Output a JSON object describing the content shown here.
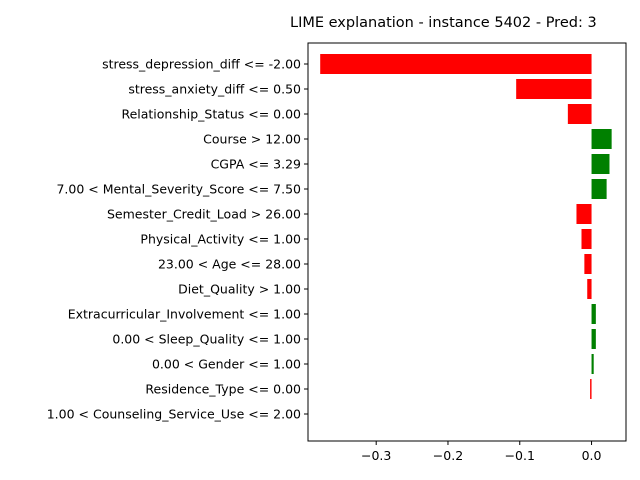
{
  "chart_data": {
    "type": "bar",
    "orientation": "horizontal",
    "title": "LIME explanation - instance 5402 - Pred: 3",
    "xlabel": "",
    "ylabel": "",
    "xlim": [
      -0.395,
      0.048
    ],
    "x_ticks": [
      -0.3,
      -0.2,
      -0.1,
      0.0
    ],
    "x_tick_labels": [
      "−0.3",
      "−0.2",
      "−0.1",
      "0.0"
    ],
    "grid": false,
    "legend": "none",
    "positive_color": "#008000",
    "negative_color": "#ff0000",
    "categories": [
      "stress_depression_diff <= -2.00",
      "stress_anxiety_diff <= 0.50",
      "Relationship_Status <= 0.00",
      "Course > 12.00",
      "CGPA <= 3.29",
      "7.00 < Mental_Severity_Score <= 7.50",
      "Semester_Credit_Load > 26.00",
      "Physical_Activity <= 1.00",
      "23.00 < Age <= 28.00",
      "Diet_Quality > 1.00",
      "Extracurricular_Involvement <= 1.00",
      "0.00 < Sleep_Quality <= 1.00",
      "0.00 < Gender <= 1.00",
      "Residence_Type <= 0.00",
      "1.00 < Counseling_Service_Use <= 2.00"
    ],
    "values": [
      -0.378,
      -0.105,
      -0.033,
      0.028,
      0.025,
      0.021,
      -0.021,
      -0.014,
      -0.01,
      -0.006,
      0.006,
      0.006,
      0.003,
      -0.002,
      0.0
    ]
  }
}
